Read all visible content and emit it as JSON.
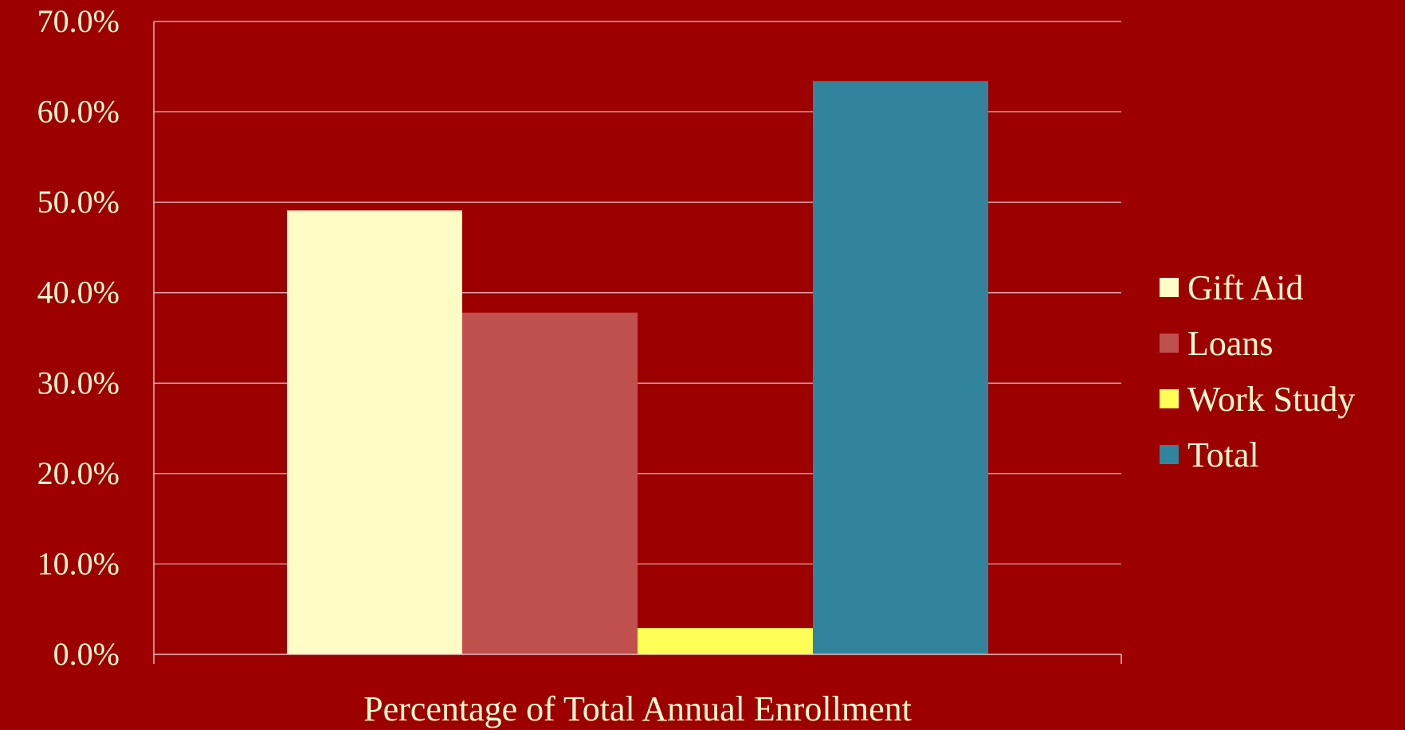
{
  "chart_data": {
    "type": "bar",
    "categories": [
      "Percentage of Total Annual Enrollment"
    ],
    "series": [
      {
        "name": "Gift Aid",
        "values": [
          49.1
        ],
        "color": "#fffcc8"
      },
      {
        "name": "Loans",
        "values": [
          37.8
        ],
        "color": "#c0504d"
      },
      {
        "name": "Work Study",
        "values": [
          2.9
        ],
        "color": "#ffff55"
      },
      {
        "name": "Total",
        "values": [
          63.4
        ],
        "color": "#31849b"
      }
    ],
    "xlabel": "Percentage of Total Annual Enrollment",
    "ylabel": "",
    "ylim": [
      0,
      70
    ],
    "yticks": [
      "0.0%",
      "10.0%",
      "20.0%",
      "30.0%",
      "40.0%",
      "50.0%",
      "60.0%",
      "70.0%"
    ],
    "grid": true,
    "legend": "right",
    "colors": {
      "background": "#9c0000",
      "text": "#fffcd0",
      "grid": "#e8c0c0"
    }
  }
}
